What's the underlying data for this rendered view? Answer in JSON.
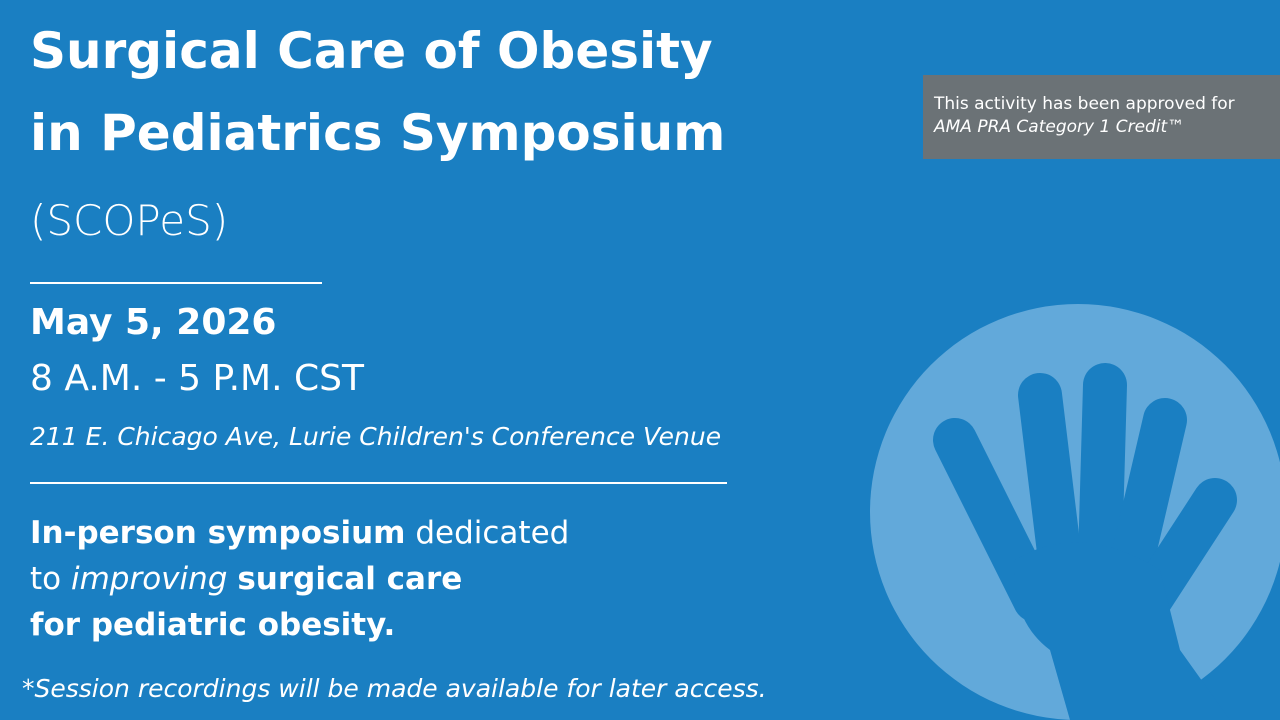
{
  "title": {
    "line1": "Surgical Care of Obesity",
    "line2": "in Pediatrics Symposium",
    "acronym": "(SCOPeS)"
  },
  "event": {
    "date": "May 5, 2026",
    "time": "8 A.M. - 5 P.M. CST",
    "venue": "211 E. Chicago Ave, Lurie Children's Conference Venue"
  },
  "description": {
    "lines": [
      [
        "In-person symposium",
        "dedicated"
      ],
      [
        "to",
        "improving",
        "surgical care"
      ],
      [
        "for pediatric obesity."
      ]
    ]
  },
  "footnote": "*Session recordings will be made available for later access.",
  "accreditation": {
    "line1": "This activity has been approved for",
    "line2": "AMA PRA Category 1 Credit™"
  }
}
